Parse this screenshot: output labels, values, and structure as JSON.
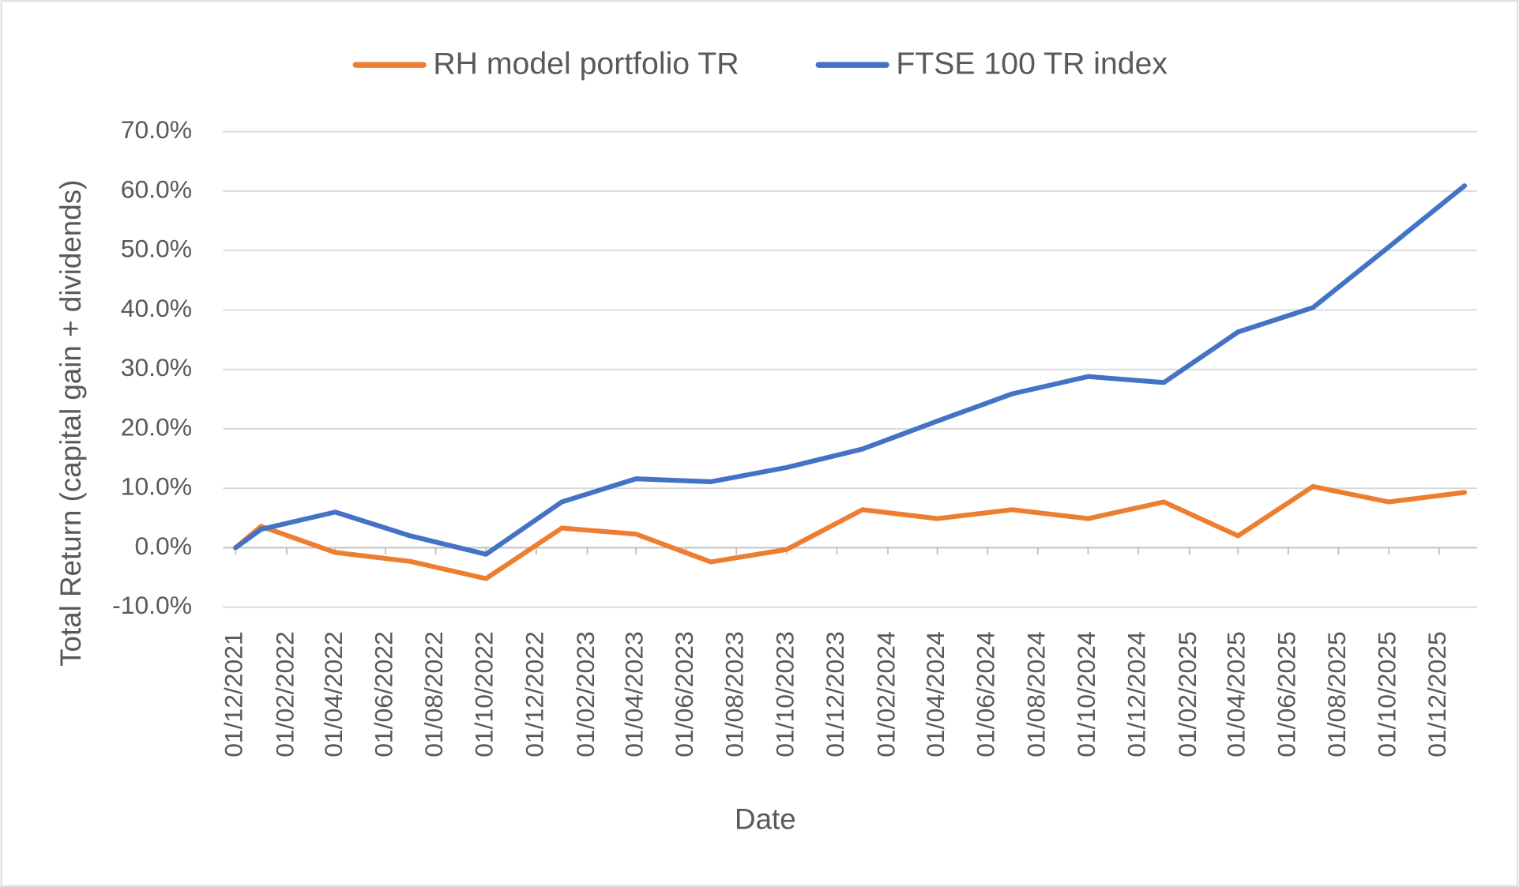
{
  "chart_data": {
    "type": "line",
    "x_label": "Date",
    "y_label": "Total Return (capital gain + dividends)",
    "x": [
      "2021-12-01",
      "2022-01-01",
      "2022-04-01",
      "2022-07-01",
      "2022-10-01",
      "2023-01-01",
      "2023-04-01",
      "2023-07-01",
      "2023-10-01",
      "2024-01-01",
      "2024-04-01",
      "2024-07-01",
      "2024-10-01",
      "2025-01-01",
      "2025-04-01",
      "2025-07-01",
      "2025-10-01",
      "2026-01-01"
    ],
    "series": [
      {
        "name": "RH model portfolio TR",
        "color": "#ed7d31",
        "values": [
          0,
          3.6,
          -0.8,
          -2.3,
          -5.2,
          3.3,
          2.3,
          -2.4,
          -0.3,
          6.4,
          4.9,
          6.4,
          4.9,
          7.7,
          2.0,
          10.3,
          7.7,
          9.3
        ]
      },
      {
        "name": "FTSE 100 TR index",
        "color": "#4472c4",
        "values": [
          0,
          3.1,
          6.0,
          2.0,
          -1.1,
          7.7,
          11.6,
          11.1,
          13.5,
          16.6,
          21.3,
          25.9,
          28.8,
          27.8,
          36.3,
          40.4,
          50.6,
          60.9
        ]
      }
    ],
    "xlim": [
      "2021-12-01",
      "2026-01-01"
    ],
    "xticks": [
      {
        "value": "2021-12-01",
        "label": "01/12/2021"
      },
      {
        "value": "2022-02-01",
        "label": "01/02/2022"
      },
      {
        "value": "2022-04-01",
        "label": "01/04/2022"
      },
      {
        "value": "2022-06-01",
        "label": "01/06/2022"
      },
      {
        "value": "2022-08-01",
        "label": "01/08/2022"
      },
      {
        "value": "2022-10-01",
        "label": "01/10/2022"
      },
      {
        "value": "2022-12-01",
        "label": "01/12/2022"
      },
      {
        "value": "2023-02-01",
        "label": "01/02/2023"
      },
      {
        "value": "2023-04-01",
        "label": "01/04/2023"
      },
      {
        "value": "2023-06-01",
        "label": "01/06/2023"
      },
      {
        "value": "2023-08-01",
        "label": "01/08/2023"
      },
      {
        "value": "2023-10-01",
        "label": "01/10/2023"
      },
      {
        "value": "2023-12-01",
        "label": "01/12/2023"
      },
      {
        "value": "2024-02-01",
        "label": "01/02/2024"
      },
      {
        "value": "2024-04-01",
        "label": "01/04/2024"
      },
      {
        "value": "2024-06-01",
        "label": "01/06/2024"
      },
      {
        "value": "2024-08-01",
        "label": "01/08/2024"
      },
      {
        "value": "2024-10-01",
        "label": "01/10/2024"
      },
      {
        "value": "2024-12-01",
        "label": "01/12/2024"
      },
      {
        "value": "2025-02-01",
        "label": "01/02/2025"
      },
      {
        "value": "2025-04-01",
        "label": "01/04/2025"
      },
      {
        "value": "2025-06-01",
        "label": "01/06/2025"
      },
      {
        "value": "2025-08-01",
        "label": "01/08/2025"
      },
      {
        "value": "2025-10-01",
        "label": "01/10/2025"
      },
      {
        "value": "2025-12-01",
        "label": "01/12/2025"
      }
    ],
    "ylim": [
      -10,
      70
    ],
    "yticks": [
      {
        "value": -10,
        "label": "-10.0%"
      },
      {
        "value": 0,
        "label": "0.0%"
      },
      {
        "value": 10,
        "label": "10.0%"
      },
      {
        "value": 20,
        "label": "20.0%"
      },
      {
        "value": 30,
        "label": "30.0%"
      },
      {
        "value": 40,
        "label": "40.0%"
      },
      {
        "value": 50,
        "label": "50.0%"
      },
      {
        "value": 60,
        "label": "60.0%"
      },
      {
        "value": 70,
        "label": "70.0%"
      }
    ],
    "grid": true,
    "legend": "top"
  }
}
